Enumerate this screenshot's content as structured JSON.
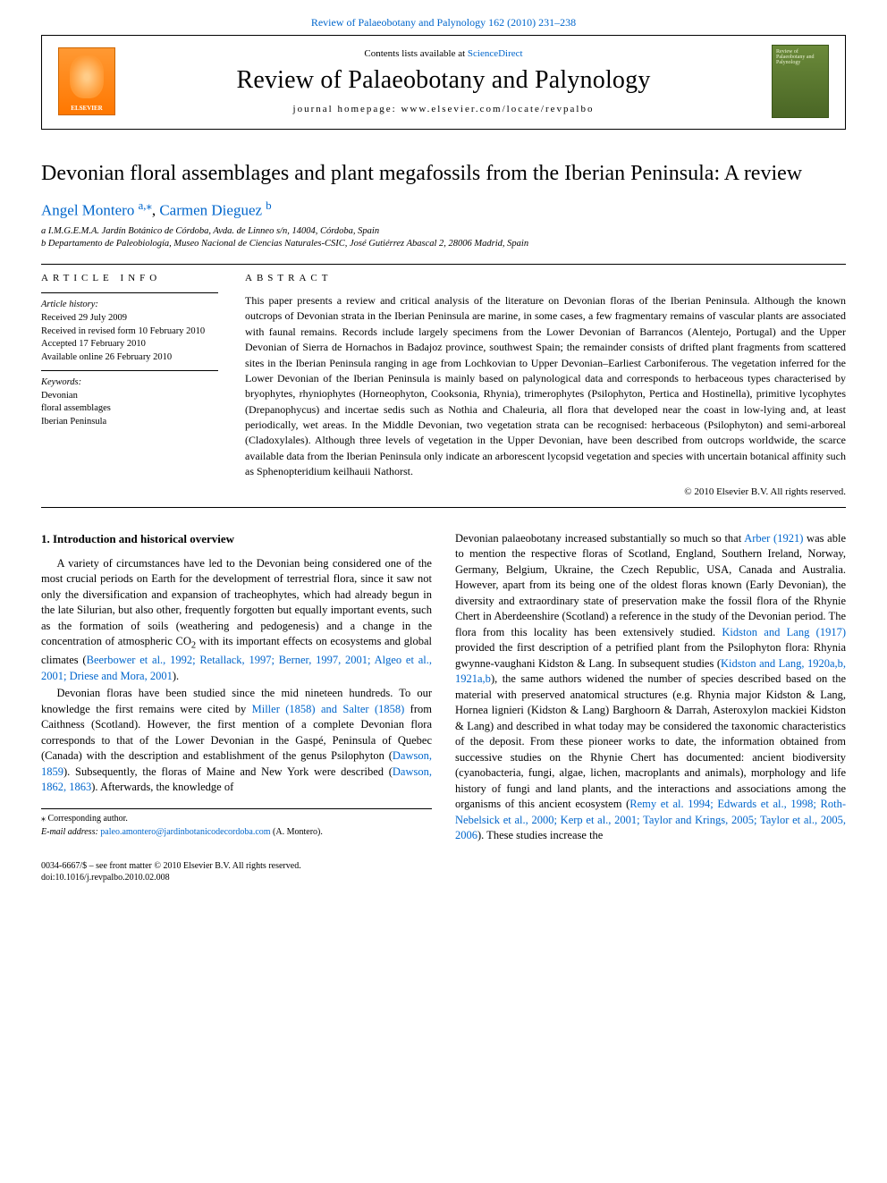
{
  "topLink": {
    "journal": "Review of Palaeobotany and Palynology",
    "ref": "162 (2010) 231–238"
  },
  "journalBox": {
    "elsevierLabel": "ELSEVIER",
    "contentsPrefix": "Contents lists available at ",
    "contentsLink": "ScienceDirect",
    "journalName": "Review of Palaeobotany and Palynology",
    "homepageLabel": "journal homepage: www.elsevier.com/locate/revpalbo",
    "coverText": "Review of Palaeobotany and Palynology"
  },
  "title": "Devonian floral assemblages and plant megafossils from the Iberian Peninsula: A review",
  "authors": {
    "a1name": "Angel Montero ",
    "a1sup": "a,",
    "a1star": "⁎",
    "sep": ", ",
    "a2name": "Carmen Dieguez ",
    "a2sup": "b"
  },
  "affiliations": {
    "a": "a I.M.G.E.M.A. Jardín Botánico de Córdoba, Avda. de Linneo s/n, 14004, Córdoba, Spain",
    "b": "b Departamento de Paleobiología, Museo Nacional de Ciencias Naturales-CSIC, José Gutiérrez Abascal 2, 28006 Madrid, Spain"
  },
  "articleInfo": {
    "head": "ARTICLE INFO",
    "historyHead": "Article history:",
    "h1": "Received 29 July 2009",
    "h2": "Received in revised form 10 February 2010",
    "h3": "Accepted 17 February 2010",
    "h4": "Available online 26 February 2010",
    "keywordsHead": "Keywords:",
    "k1": "Devonian",
    "k2": "floral assemblages",
    "k3": "Iberian Peninsula"
  },
  "abstract": {
    "head": "ABSTRACT",
    "text": "This paper presents a review and critical analysis of the literature on Devonian floras of the Iberian Peninsula. Although the known outcrops of Devonian strata in the Iberian Peninsula are marine, in some cases, a few fragmentary remains of vascular plants are associated with faunal remains. Records include largely specimens from the Lower Devonian of Barrancos (Alentejo, Portugal) and the Upper Devonian of Sierra de Hornachos in Badajoz province, southwest Spain; the remainder consists of drifted plant fragments from scattered sites in the Iberian Peninsula ranging in age from Lochkovian to Upper Devonian–Earliest Carboniferous. The vegetation inferred for the Lower Devonian of the Iberian Peninsula is mainly based on palynological data and corresponds to herbaceous types characterised by bryophytes, rhyniophytes (Horneophyton, Cooksonia, Rhynia), trimerophytes (Psilophyton, Pertica and Hostinella), primitive lycophytes (Drepanophycus) and incertae sedis such as Nothia and Chaleuria, all flora that developed near the coast in low-lying and, at least periodically, wet areas. In the Middle Devonian, two vegetation strata can be recognised: herbaceous (Psilophyton) and semi-arboreal (Cladoxylales). Although three levels of vegetation in the Upper Devonian, have been described from outcrops worldwide, the scarce available data from the Iberian Peninsula only indicate an arborescent lycopsid vegetation and species with uncertain botanical affinity such as Sphenopteridium keilhauii Nathorst.",
    "copyright": "© 2010 Elsevier B.V. All rights reserved."
  },
  "body": {
    "sectionHead": "1. Introduction and historical overview",
    "leftP1a": "A variety of circumstances have led to the Devonian being considered one of the most crucial periods on Earth for the development of terrestrial flora, since it saw not only the diversification and expansion of tracheophytes, which had already begun in the late Silurian, but also other, frequently forgotten but equally important events, such as the formation of soils (weathering and pedogenesis) and a change in the concentration of atmospheric CO",
    "leftP1b": " with its important effects on ecosystems and global climates (",
    "leftP1link": "Beerbower et al., 1992; Retallack, 1997; Berner, 1997, 2001; Algeo et al., 2001; Driese and Mora, 2001",
    "leftP1c": ").",
    "leftP2a": "Devonian floras have been studied since the mid nineteen hundreds. To our knowledge the first remains were cited by ",
    "leftP2link1": "Miller (1858) and Salter (1858)",
    "leftP2b": " from Caithness (Scotland). However, the first mention of a complete Devonian flora corresponds to that of the Lower Devonian in the Gaspé, Peninsula of Quebec (Canada) with the description and establishment of the genus Psilophyton (",
    "leftP2link2": "Dawson, 1859",
    "leftP2c": "). Subsequently, the floras of Maine and New York were described (",
    "leftP2link3": "Dawson, 1862, 1863",
    "leftP2d": "). Afterwards, the knowledge of",
    "rightP1a": "Devonian palaeobotany increased substantially so much so that ",
    "rightP1link1": "Arber (1921)",
    "rightP1b": " was able to mention the respective floras of Scotland, England, Southern Ireland, Norway, Germany, Belgium, Ukraine, the Czech Republic, USA, Canada and Australia. However, apart from its being one of the oldest floras known (Early Devonian), the diversity and extraordinary state of preservation make the fossil flora of the Rhynie Chert in Aberdeenshire (Scotland) a reference in the study of the Devonian period. The flora from this locality has been extensively studied. ",
    "rightP1link2": "Kidston and Lang (1917)",
    "rightP1c": " provided the first description of a petrified plant from the Psilophyton flora: Rhynia gwynne-vaughani Kidston & Lang. In subsequent studies (",
    "rightP1link3": "Kidston and Lang, 1920a,b, 1921a,b",
    "rightP1d": "), the same authors widened the number of species described based on the material with preserved anatomical structures (e.g. Rhynia major Kidston & Lang, Hornea lignieri (Kidston & Lang) Barghoorn & Darrah, Asteroxylon mackiei Kidston & Lang) and described in what today may be considered the taxonomic characteristics of the deposit. From these pioneer works to date, the information obtained from successive studies on the Rhynie Chert has documented: ancient biodiversity (cyanobacteria, fungi, algae, lichen, macroplants and animals), morphology and life history of fungi and land plants, and the interactions and associations among the organisms of this ancient ecosystem (",
    "rightP1link4": "Remy et al. 1994; Edwards et al., 1998; Roth-Nebelsick et al., 2000; Kerp et al., 2001; Taylor and Krings, 2005; Taylor et al., 2005, 2006",
    "rightP1e": "). These studies increase the"
  },
  "correspondence": {
    "star": "⁎",
    "corrLabel": " Corresponding author.",
    "emailLabel": "E-mail address: ",
    "email": "paleo.amontero@jardinbotanicodecordoba.com",
    "emailTail": " (A. Montero)."
  },
  "footer": {
    "line1": "0034-6667/$ – see front matter © 2010 Elsevier B.V. All rights reserved.",
    "line2": "doi:10.1016/j.revpalbo.2010.02.008"
  },
  "colors": {
    "link": "#0066cc",
    "text": "#000000",
    "bg": "#ffffff",
    "elsevierOrange": "#ff8822",
    "coverGreen": "#5a7a2e"
  }
}
